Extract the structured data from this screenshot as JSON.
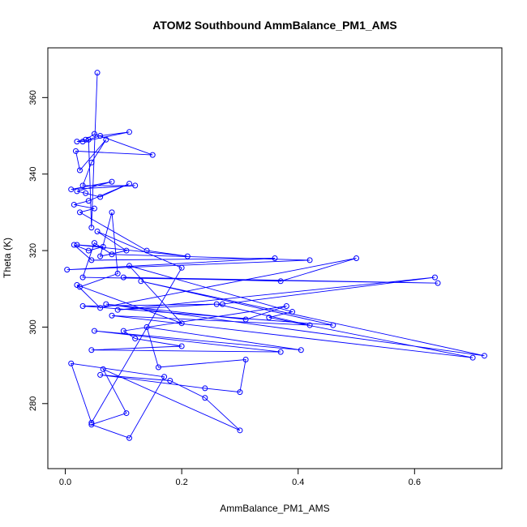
{
  "chart_data": {
    "type": "line",
    "title": "ATOM2 Southbound AmmBalance_PM1_AMS",
    "xlabel": "AmmBalance_PM1_AMS",
    "ylabel": "Theta (K)",
    "xlim": [
      -0.03,
      0.75
    ],
    "ylim": [
      263,
      373
    ],
    "x_ticks": [
      0.0,
      0.2,
      0.4,
      0.6
    ],
    "x_tick_labels": [
      "0.0",
      "0.2",
      "0.4",
      "0.6"
    ],
    "y_ticks": [
      280,
      300,
      320,
      340,
      360
    ],
    "y_tick_labels": [
      "280",
      "300",
      "320",
      "340",
      "360"
    ],
    "grid": false,
    "legend": "none",
    "marker": "open-circle",
    "color": "#0000ff",
    "series": [
      {
        "x": [
          0.055,
          0.045,
          0.04,
          0.06,
          0.11,
          0.03,
          0.02,
          0.035,
          0.05,
          0.15,
          0.018,
          0.025,
          0.07,
          0.045,
          0.03,
          0.12,
          0.01,
          0.08,
          0.02,
          0.035,
          0.06,
          0.11,
          0.04,
          0.015,
          0.05,
          0.025,
          0.14,
          0.21,
          0.02,
          0.065,
          0.04,
          0.015,
          0.045,
          0.36,
          0.003,
          0.42,
          0.08,
          0.05,
          0.03,
          0.64,
          0.1,
          0.37,
          0.5,
          0.06,
          0.02,
          0.2,
          0.11,
          0.39,
          0.35,
          0.7,
          0.08,
          0.42,
          0.26,
          0.09,
          0.635,
          0.27,
          0.03,
          0.46,
          0.13,
          0.72,
          0.07,
          0.31,
          0.38,
          0.1,
          0.12,
          0.2,
          0.045,
          0.37,
          0.05,
          0.405,
          0.14,
          0.16,
          0.31,
          0.3,
          0.24,
          0.06,
          0.18,
          0.24,
          0.3,
          0.065,
          0.105,
          0.045,
          0.11,
          0.17,
          0.01,
          0.045,
          0.2,
          0.055,
          0.105,
          0.06,
          0.08,
          0.09,
          0.025
        ],
        "y": [
          366.5,
          326,
          349,
          350,
          351,
          348.5,
          348.5,
          349,
          350.5,
          345,
          346,
          341,
          349,
          343,
          337,
          337,
          336,
          338,
          335.5,
          335,
          334,
          337.5,
          333,
          332,
          331,
          330,
          320,
          318.5,
          321.5,
          321,
          320,
          321.5,
          317.5,
          318,
          315,
          317.5,
          319,
          322,
          313,
          311.5,
          313,
          312,
          318,
          305,
          311,
          301,
          316,
          304,
          302.5,
          292,
          303,
          300.5,
          306,
          304.5,
          313,
          306,
          305.5,
          300.5,
          312,
          292.5,
          306,
          302,
          305.5,
          299,
          297,
          295,
          294,
          293.5,
          299,
          294,
          300,
          289.5,
          291.5,
          283,
          284,
          287.5,
          286,
          281.5,
          273,
          289,
          277.5,
          274.5,
          271,
          287,
          290.5,
          275,
          315.5,
          325,
          320,
          318.5,
          330,
          314,
          310.5
        ]
      }
    ]
  }
}
